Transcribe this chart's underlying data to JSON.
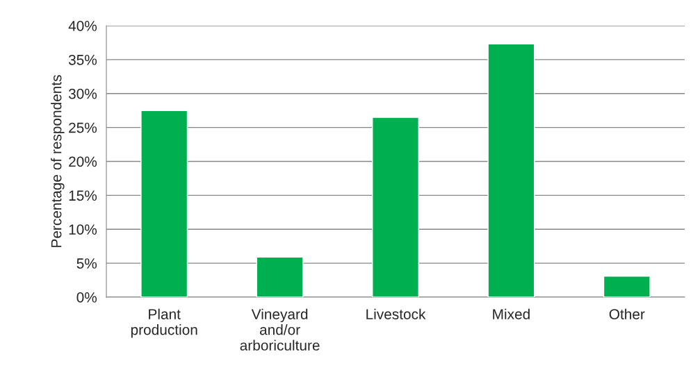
{
  "chart_data": {
    "type": "bar",
    "ylabel": "Percentage of respondents",
    "categories": [
      "Plant\nproduction",
      "Vineyard\nand/or\narboriculture",
      "Livestock",
      "Mixed",
      "Other"
    ],
    "values": [
      27.5,
      5.9,
      26.5,
      37.3,
      3.1
    ],
    "color": "#00b050",
    "ylim": [
      0,
      40
    ],
    "yticks": [
      {
        "value": 0,
        "label": "0%"
      },
      {
        "value": 5,
        "label": "5%"
      },
      {
        "value": 10,
        "label": "10%"
      },
      {
        "value": 15,
        "label": "15%"
      },
      {
        "value": 20,
        "label": "20%"
      },
      {
        "value": 25,
        "label": "25%"
      },
      {
        "value": 30,
        "label": "30%"
      },
      {
        "value": 35,
        "label": "35%"
      },
      {
        "value": 40,
        "label": "40%"
      }
    ],
    "grid": "y",
    "legend": false
  }
}
